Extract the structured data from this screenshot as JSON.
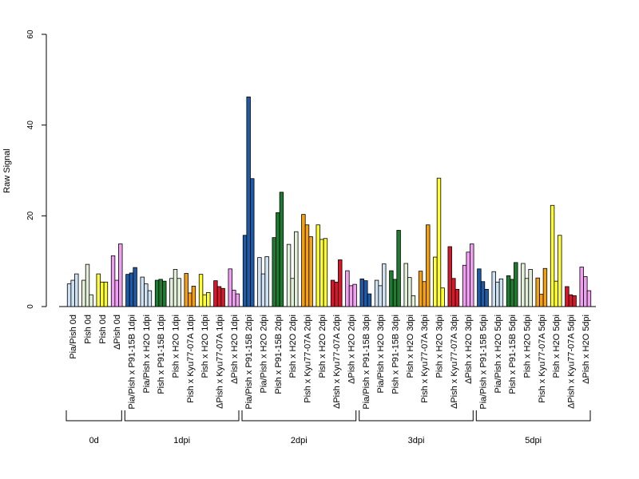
{
  "chart_data": {
    "type": "bar",
    "ylabel": "Raw Signal",
    "ylim": [
      0,
      60
    ],
    "yticks": [
      0,
      20,
      40,
      60
    ],
    "grid": false,
    "legend": "none",
    "categories": [
      "Pia/Pish 0d",
      "Pish 0d",
      "Pish 0d",
      "ΔPish 0d",
      "Pia/Pish x P91-15B 1dpi",
      "Pia/Pish x H2O 1dpi",
      "Pish x P91-15B 1dpi",
      "Pish x H2O 1dpi",
      "Pish x Kyu77-07A 1dpi",
      "Pish x H2O 1dpi",
      "ΔPish x Kyu77-07A 1dpi",
      "ΔPish x H2O 1dpi",
      "Pia/Pish x P91-15B 2dpi",
      "Pia/Pish x H2O 2dpi",
      "Pish x P91-15B 2dpi",
      "Pish x H2O 2dpi",
      "Pish x Kyu77-07A 2dpi",
      "Pish x H2O 2dpi",
      "ΔPish x Kyu77-07A 2dpi",
      "ΔPish x H2O 2dpi",
      "Pia/Pish x P91-15B 3dpi",
      "Pia/Pish x H2O 3dpi",
      "Pish x P91-15B 3dpi",
      "Pish x H2O 3dpi",
      "Pish x Kyu77-07A 3dpi",
      "Pish x H2O 3dpi",
      "ΔPish x Kyu77-07A 3dpi",
      "ΔPish x H2O 3dpi",
      "Pia/Pish x P91-15B 5dpi",
      "Pia/Pish x H2O 5dpi",
      "Pish x P91-15B 5dpi",
      "Pish x H2O 5dpi",
      "Pish x Kyu77-07A 5dpi",
      "Pish x H2O 5dpi",
      "ΔPish x Kyu77-07A 5dpi",
      "ΔPish x H2O 5dpi"
    ],
    "colors": [
      "#cfe2f3",
      "#e2f0d9",
      "#ffff33",
      "#f0a0f0",
      "#1f5aa6",
      "#cfe2f3",
      "#1e7b30",
      "#e2f0d9",
      "#f5a00f",
      "#ffff33",
      "#d7182a",
      "#f0a0f0",
      "#1f5aa6",
      "#cfe2f3",
      "#1e7b30",
      "#e2f0d9",
      "#f5a00f",
      "#ffff33",
      "#d7182a",
      "#f0a0f0",
      "#1f5aa6",
      "#cfe2f3",
      "#1e7b30",
      "#e2f0d9",
      "#f5a00f",
      "#ffff33",
      "#d7182a",
      "#f0a0f0",
      "#1f5aa6",
      "#cfe2f3",
      "#1e7b30",
      "#e2f0d9",
      "#f5a00f",
      "#ffff33",
      "#d7182a",
      "#f0a0f0"
    ],
    "values": [
      [
        5.0,
        5.8,
        7.2
      ],
      [
        5.8,
        9.3,
        2.6
      ],
      [
        7.2,
        5.4,
        5.4
      ],
      [
        11.2,
        5.8,
        13.8
      ],
      [
        7.1,
        7.4,
        8.6
      ],
      [
        6.5,
        5.0,
        3.5
      ],
      [
        5.8,
        6.0,
        5.6
      ],
      [
        6.2,
        8.2,
        6.2
      ],
      [
        7.3,
        3.0,
        4.5
      ],
      [
        7.1,
        2.6,
        3.1
      ],
      [
        5.7,
        4.4,
        4.0
      ],
      [
        8.3,
        3.6,
        2.8
      ],
      [
        15.7,
        46.2,
        28.2
      ],
      [
        10.8,
        7.2,
        11.0
      ],
      [
        15.2,
        20.7,
        25.2
      ],
      [
        13.7,
        6.2,
        16.5
      ],
      [
        20.3,
        18.0,
        15.4
      ],
      [
        18.0,
        14.8,
        15.0
      ],
      [
        5.8,
        5.4,
        10.3
      ],
      [
        7.9,
        4.6,
        4.9
      ],
      [
        6.1,
        5.7,
        2.8
      ],
      [
        5.8,
        4.6,
        9.4
      ],
      [
        7.9,
        6.0,
        16.8
      ],
      [
        9.5,
        6.4,
        2.4
      ],
      [
        7.8,
        5.5,
        18.0
      ],
      [
        10.9,
        28.3,
        4.1
      ],
      [
        13.2,
        6.2,
        3.8
      ],
      [
        9.1,
        12.0,
        13.8
      ],
      [
        8.3,
        5.5,
        3.8
      ],
      [
        7.7,
        5.4,
        6.1
      ],
      [
        6.8,
        6.0,
        9.7
      ],
      [
        9.5,
        6.2,
        8.2
      ],
      [
        6.3,
        2.7,
        8.4
      ],
      [
        22.3,
        5.6,
        15.7
      ],
      [
        4.4,
        2.6,
        2.4
      ],
      [
        8.7,
        6.6,
        3.5
      ]
    ],
    "groups": [
      {
        "label": "0d",
        "start": 0,
        "end": 3
      },
      {
        "label": "1dpi",
        "start": 4,
        "end": 11
      },
      {
        "label": "2dpi",
        "start": 12,
        "end": 19
      },
      {
        "label": "3dpi",
        "start": 20,
        "end": 27
      },
      {
        "label": "5dpi",
        "start": 28,
        "end": 35
      }
    ]
  }
}
